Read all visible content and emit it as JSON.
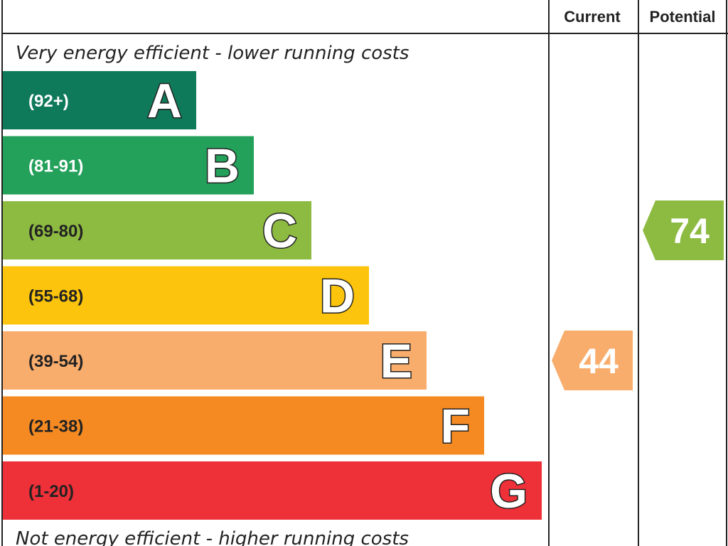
{
  "header": {
    "current_label": "Current",
    "potential_label": "Potential"
  },
  "captions": {
    "top": "Very energy efficient - lower running costs",
    "bottom": "Not energy efficient - higher running costs"
  },
  "chart_data": {
    "type": "bar",
    "bands": [
      {
        "letter": "A",
        "range": "(92+)",
        "min": 92,
        "max": 100,
        "color": "#0f7a5a",
        "range_text_color": "#ffffff"
      },
      {
        "letter": "B",
        "range": "(81-91)",
        "min": 81,
        "max": 91,
        "color": "#23a05a",
        "range_text_color": "#ffffff"
      },
      {
        "letter": "C",
        "range": "(69-80)",
        "min": 69,
        "max": 80,
        "color": "#8dba41",
        "range_text_color": "#222222"
      },
      {
        "letter": "D",
        "range": "(55-68)",
        "min": 55,
        "max": 68,
        "color": "#fcc40c",
        "range_text_color": "#222222"
      },
      {
        "letter": "E",
        "range": "(39-54)",
        "min": 39,
        "max": 54,
        "color": "#f9ad6c",
        "range_text_color": "#222222"
      },
      {
        "letter": "F",
        "range": "(21-38)",
        "min": 21,
        "max": 38,
        "color": "#f58a22",
        "range_text_color": "#222222"
      },
      {
        "letter": "G",
        "range": "(1-20)",
        "min": 1,
        "max": 20,
        "color": "#ee3038",
        "range_text_color": "#222222"
      }
    ],
    "current": {
      "value": 44,
      "band": "E",
      "color": "#f9ad6c"
    },
    "potential": {
      "value": 74,
      "band": "C",
      "color": "#8dba41"
    }
  }
}
